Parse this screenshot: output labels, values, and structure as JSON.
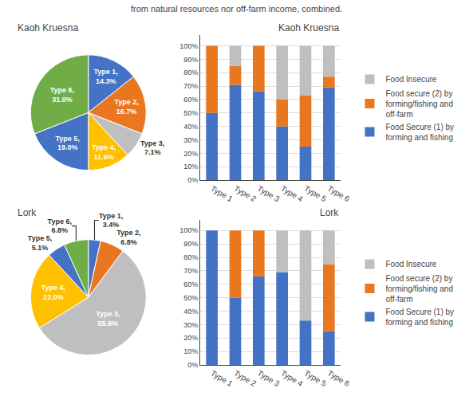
{
  "title": "from natural resources nor off-farm income, combined.",
  "chart_data": [
    {
      "type": "pie",
      "title": "Kaoh Kruesna",
      "categories": [
        "Type 1,",
        "Type 2,",
        "Type 3,",
        "Type 4,",
        "Type 5,",
        "Type 6,"
      ],
      "values": [
        14.3,
        16.7,
        7.1,
        11.9,
        19.0,
        31.0
      ],
      "value_labels": [
        "14.3%",
        "16.7%",
        "7.1%",
        "11.9%",
        "19.0%",
        "31.0%"
      ],
      "colors": [
        "#4472C4",
        "#E97720",
        "#BFBFBF",
        "#FFC000",
        "#4472C4",
        "#70AD47"
      ],
      "data_labels": true
    },
    {
      "type": "bar",
      "title": "Kaoh Kruesna",
      "stacked": true,
      "categories": [
        "Type 1",
        "Type 2",
        "Type 3",
        "Type 4",
        "Type 5",
        "Type 6"
      ],
      "series": [
        {
          "name": "Food Secure (1) by\nforming and fishing",
          "color": "#4472C4",
          "values": [
            50,
            71,
            66,
            40,
            25,
            69
          ]
        },
        {
          "name": "Food secure (2) by\nforming/fishing and\noff-farm",
          "color": "#E97720",
          "values": [
            50,
            14,
            34,
            20,
            38,
            8
          ]
        },
        {
          "name": "Food Insecure",
          "color": "#BFBFBF",
          "values": [
            0,
            15,
            0,
            40,
            37,
            23
          ]
        }
      ],
      "ylim": [
        0,
        108
      ],
      "yticks": [
        {
          "value": 0,
          "label": "0%"
        },
        {
          "value": 10,
          "label": "10%"
        },
        {
          "value": 20,
          "label": "20%"
        },
        {
          "value": 30,
          "label": "30%"
        },
        {
          "value": 40,
          "label": "40%"
        },
        {
          "value": 50,
          "label": "50%"
        },
        {
          "value": 60,
          "label": "60%"
        },
        {
          "value": 70,
          "label": "70%"
        },
        {
          "value": 80,
          "label": "80%"
        },
        {
          "value": 90,
          "label": "90%"
        },
        {
          "value": 100,
          "label": "100%"
        }
      ],
      "grid": true,
      "legend": "right"
    },
    {
      "type": "pie",
      "title": "Lork",
      "categories": [
        "Type 1,",
        "Type 2,",
        "Type 3,",
        "Type 4,",
        "Type 5,",
        "Type 6,"
      ],
      "values": [
        3.4,
        6.8,
        55.9,
        22.0,
        5.1,
        6.8
      ],
      "value_labels": [
        "3.4%",
        "6.8%",
        "55.9%",
        "22.0%",
        "5.1%",
        "6.8%"
      ],
      "colors": [
        "#4472C4",
        "#E97720",
        "#BFBFBF",
        "#FFC000",
        "#4472C4",
        "#70AD47"
      ],
      "data_labels": true
    },
    {
      "type": "bar",
      "title": "Lork",
      "stacked": true,
      "categories": [
        "Type 1",
        "Type 2",
        "Type 3",
        "Type 4",
        "Type 5",
        "Type 6"
      ],
      "series": [
        {
          "name": "Food Secure (1) by\nforming and fishing",
          "color": "#4472C4",
          "values": [
            100,
            50,
            66,
            69,
            33,
            25
          ]
        },
        {
          "name": "Food secure (2) by\nforming/fishing and\noff-farm",
          "color": "#E97720",
          "values": [
            0,
            50,
            34,
            0,
            0,
            50
          ]
        },
        {
          "name": "Food Insecure",
          "color": "#BFBFBF",
          "values": [
            0,
            0,
            0,
            31,
            67,
            25
          ]
        }
      ],
      "ylim": [
        0,
        108
      ],
      "yticks": [
        {
          "value": 0,
          "label": "0%"
        },
        {
          "value": 10,
          "label": "10%"
        },
        {
          "value": 20,
          "label": "20%"
        },
        {
          "value": 30,
          "label": "30%"
        },
        {
          "value": 40,
          "label": "40%"
        },
        {
          "value": 50,
          "label": "50%"
        },
        {
          "value": 60,
          "label": "60%"
        },
        {
          "value": 70,
          "label": "70%"
        },
        {
          "value": 80,
          "label": "80%"
        },
        {
          "value": 90,
          "label": "90%"
        },
        {
          "value": 100,
          "label": "100%"
        }
      ],
      "grid": true,
      "legend": "right"
    }
  ]
}
